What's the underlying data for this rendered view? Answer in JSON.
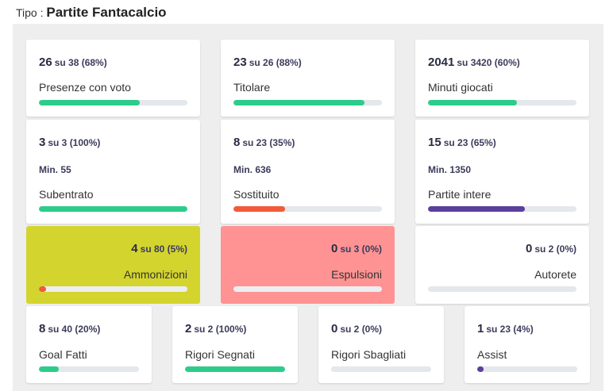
{
  "header": {
    "prefix": "Tipo :",
    "title": "Partite Fantacalcio"
  },
  "colors": {
    "green": "#2ecc8a",
    "orange": "#f15a3a",
    "purple": "#5b3f9b",
    "yellow_card": "#d4d42f",
    "red_card": "#ff9393"
  },
  "cards": {
    "presenze": {
      "big": "26",
      "rest": "su 38 (68%)",
      "label": "Presenze con voto",
      "fraction": 0.68
    },
    "titolare": {
      "big": "23",
      "rest": "su 26 (88%)",
      "label": "Titolare",
      "fraction": 0.88
    },
    "minuti": {
      "big": "2041",
      "rest": "su 3420 (60%)",
      "label": "Minuti giocati",
      "fraction": 0.6
    },
    "subentrato": {
      "big": "3",
      "rest": "su 3 (100%)",
      "min": "Min. 55",
      "label": "Subentrato",
      "fraction": 1.0
    },
    "sostituito": {
      "big": "8",
      "rest": "su 23 (35%)",
      "min": "Min. 636",
      "label": "Sostituito",
      "fraction": 0.35
    },
    "intere": {
      "big": "15",
      "rest": "su 23 (65%)",
      "min": "Min. 1350",
      "label": "Partite intere",
      "fraction": 0.65
    },
    "ammonizioni": {
      "big": "4",
      "rest": "su 80 (5%)",
      "label": "Ammonizioni",
      "fraction": 0.05
    },
    "espulsioni": {
      "big": "0",
      "rest": "su 3 (0%)",
      "label": "Espulsioni",
      "fraction": 0.0
    },
    "autorete": {
      "big": "0",
      "rest": "su 2 (0%)",
      "label": "Autorete",
      "fraction": 0.0
    },
    "goal": {
      "big": "8",
      "rest": "su 40 (20%)",
      "label": "Goal Fatti",
      "fraction": 0.2
    },
    "rigori_segnati": {
      "big": "2",
      "rest": "su 2 (100%)",
      "label": "Rigori Segnati",
      "fraction": 1.0
    },
    "rigori_sbagliati": {
      "big": "0",
      "rest": "su 2 (0%)",
      "label": "Rigori Sbagliati",
      "fraction": 0.0
    },
    "assist": {
      "big": "1",
      "rest": "su 23 (4%)",
      "label": "Assist",
      "fraction": 0.04
    }
  }
}
